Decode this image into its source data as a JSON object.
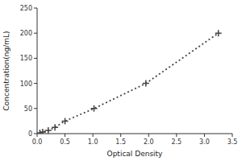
{
  "chart_data": {
    "type": "line",
    "xlabel": "Optical Density",
    "ylabel": "Concentration(ng/mL)",
    "x": [
      0.05,
      0.1,
      0.2,
      0.32,
      0.5,
      1.02,
      1.95,
      3.25
    ],
    "values": [
      1.56,
      3.12,
      6.25,
      12.5,
      25.0,
      50.0,
      100.0,
      200.0
    ],
    "xlim": [
      0,
      3.5
    ],
    "ylim": [
      0,
      250
    ],
    "xticks": [
      {
        "value": 0,
        "label": "0.0"
      },
      0.5,
      {
        "value": 1,
        "label": "1.0"
      },
      1.5,
      {
        "value": 2,
        "label": "2.0"
      },
      2.5,
      {
        "value": 3,
        "label": "3.0"
      },
      3.5
    ],
    "yticks": [
      0,
      50,
      100,
      150,
      200,
      250
    ],
    "color": "#444444",
    "marker": "plus",
    "line_style": "dotted"
  }
}
